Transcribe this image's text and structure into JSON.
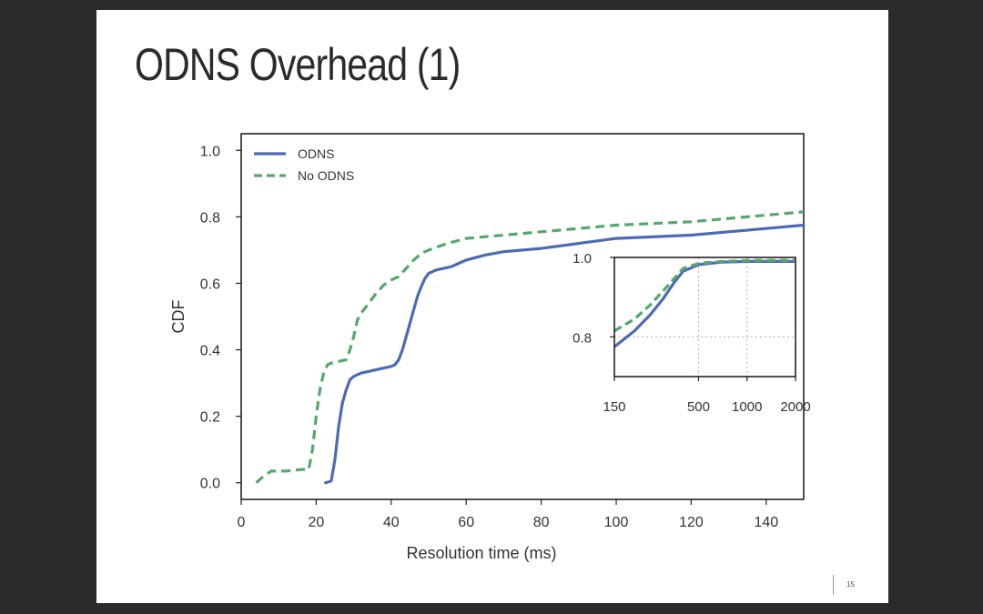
{
  "slide": {
    "title": "ODNS Overhead (1)",
    "page_number": "15"
  },
  "chart_data": [
    {
      "type": "line",
      "title": "",
      "xlabel": "Resolution time (ms)",
      "ylabel": "CDF",
      "xlim": [
        0,
        150
      ],
      "ylim": [
        -0.05,
        1.05
      ],
      "xticks": [
        0,
        20,
        40,
        60,
        80,
        100,
        120,
        140
      ],
      "xtick_labels": [
        "0",
        "20",
        "40",
        "60",
        "80",
        "100",
        "120",
        "140"
      ],
      "yticks": [
        0.0,
        0.2,
        0.4,
        0.6,
        0.8,
        1.0
      ],
      "ytick_labels": [
        "0.0",
        "0.2",
        "0.4",
        "0.6",
        "0.8",
        "1.0"
      ],
      "legend": "top-left",
      "grid": false,
      "series": [
        {
          "name": "ODNS",
          "color": "#4c6bb5",
          "style": "solid",
          "x": [
            22.5,
            24,
            25,
            26,
            27,
            28,
            29,
            30,
            32,
            34,
            36,
            38,
            40,
            41,
            42,
            43,
            44,
            45,
            46,
            47,
            48,
            49,
            50,
            52,
            54,
            56,
            58,
            60,
            65,
            70,
            80,
            90,
            100,
            120,
            130,
            140,
            150
          ],
          "y": [
            0.0,
            0.005,
            0.07,
            0.17,
            0.24,
            0.28,
            0.31,
            0.32,
            0.33,
            0.335,
            0.34,
            0.345,
            0.35,
            0.355,
            0.37,
            0.4,
            0.44,
            0.48,
            0.52,
            0.56,
            0.59,
            0.615,
            0.63,
            0.64,
            0.645,
            0.65,
            0.66,
            0.67,
            0.685,
            0.695,
            0.705,
            0.72,
            0.735,
            0.745,
            0.755,
            0.765,
            0.775
          ]
        },
        {
          "name": "No ODNS",
          "color": "#55a86a",
          "style": "dashed",
          "x": [
            4,
            6,
            8,
            12,
            16,
            18,
            19,
            20,
            21,
            22,
            23,
            24,
            26,
            28,
            29,
            30,
            31,
            32,
            34,
            36,
            38,
            40,
            42,
            44,
            46,
            48,
            50,
            55,
            60,
            70,
            80,
            90,
            100,
            120,
            140,
            150
          ],
          "y": [
            0.0,
            0.02,
            0.035,
            0.035,
            0.04,
            0.04,
            0.1,
            0.2,
            0.28,
            0.33,
            0.355,
            0.36,
            0.365,
            0.37,
            0.4,
            0.44,
            0.49,
            0.51,
            0.54,
            0.57,
            0.595,
            0.61,
            0.62,
            0.645,
            0.67,
            0.69,
            0.7,
            0.72,
            0.735,
            0.745,
            0.755,
            0.765,
            0.775,
            0.785,
            0.805,
            0.815
          ]
        }
      ]
    },
    {
      "type": "line",
      "title": "",
      "xscale": "log",
      "xlim": [
        150,
        2000
      ],
      "ylim": [
        0.7,
        1.0
      ],
      "xticks": [
        150,
        500,
        1000,
        2000
      ],
      "xtick_labels": [
        "150",
        "500",
        "1000",
        "2000"
      ],
      "yticks": [
        0.8,
        1.0
      ],
      "ytick_labels": [
        "0.8",
        "1.0"
      ],
      "grid": true,
      "series": [
        {
          "name": "ODNS",
          "color": "#4c6bb5",
          "style": "solid",
          "x": [
            150,
            200,
            250,
            300,
            350,
            400,
            500,
            700,
            1000,
            1500,
            2000
          ],
          "y": [
            0.775,
            0.815,
            0.855,
            0.895,
            0.935,
            0.965,
            0.982,
            0.988,
            0.99,
            0.99,
            0.99
          ]
        },
        {
          "name": "No ODNS",
          "color": "#55a86a",
          "style": "dashed",
          "x": [
            150,
            200,
            250,
            300,
            350,
            400,
            500,
            700,
            1000,
            1500,
            2000
          ],
          "y": [
            0.815,
            0.845,
            0.88,
            0.915,
            0.945,
            0.972,
            0.985,
            0.99,
            0.992,
            0.993,
            0.993
          ]
        }
      ]
    }
  ]
}
